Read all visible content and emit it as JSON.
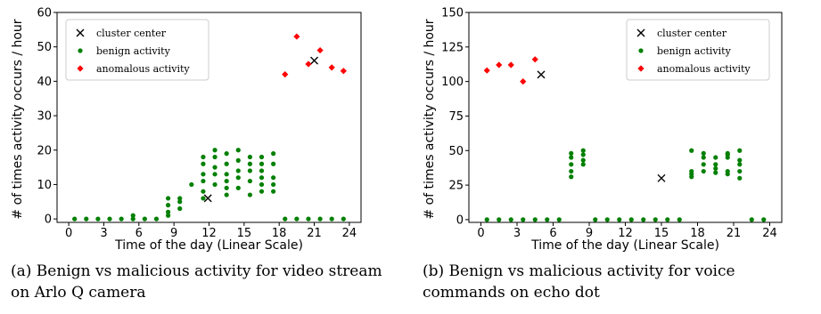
{
  "captions": [
    "(a) Benign vs malicious activity for video stream on Arlo Q camera",
    "(b) Benign vs malicious activity for voice commands on echo dot"
  ],
  "chart_data": [
    {
      "type": "scatter",
      "title": "",
      "xlabel": "Time of the day (Linear Scale)",
      "ylabel": "# of times activity occurs / hour",
      "xlim": [
        -1,
        25
      ],
      "ylim": [
        -1,
        60
      ],
      "xticks": [
        0,
        3,
        6,
        9,
        12,
        15,
        18,
        21,
        24
      ],
      "yticks": [
        0,
        10,
        20,
        30,
        40,
        50,
        60
      ],
      "grid": false,
      "legend_position": "top-left",
      "series": [
        {
          "name": "cluster center",
          "marker": "x",
          "color": "#000000",
          "points": [
            [
              11.9,
              6
            ],
            [
              21,
              46
            ]
          ]
        },
        {
          "name": "benign activity",
          "marker": "circle",
          "color": "#008000",
          "points": [
            [
              0.5,
              0
            ],
            [
              1.5,
              0
            ],
            [
              2.5,
              0
            ],
            [
              3.5,
              0
            ],
            [
              4.5,
              0
            ],
            [
              5.5,
              0
            ],
            [
              5.5,
              1
            ],
            [
              6.5,
              0
            ],
            [
              7.5,
              0
            ],
            [
              8.5,
              1
            ],
            [
              8.5,
              2
            ],
            [
              8.5,
              4
            ],
            [
              8.5,
              6
            ],
            [
              9.5,
              3
            ],
            [
              9.5,
              5
            ],
            [
              9.5,
              6
            ],
            [
              10.5,
              10
            ],
            [
              11.5,
              6
            ],
            [
              11.5,
              8
            ],
            [
              11.5,
              11
            ],
            [
              11.5,
              13
            ],
            [
              11.5,
              16
            ],
            [
              11.5,
              18
            ],
            [
              12.5,
              10
            ],
            [
              12.5,
              13
            ],
            [
              12.5,
              15
            ],
            [
              12.5,
              18
            ],
            [
              12.5,
              20
            ],
            [
              13.5,
              7
            ],
            [
              13.5,
              9
            ],
            [
              13.5,
              11
            ],
            [
              13.5,
              13
            ],
            [
              13.5,
              16
            ],
            [
              13.5,
              19
            ],
            [
              14.5,
              9
            ],
            [
              14.5,
              12
            ],
            [
              14.5,
              14
            ],
            [
              14.5,
              17
            ],
            [
              14.5,
              20
            ],
            [
              15.5,
              7
            ],
            [
              15.5,
              11
            ],
            [
              15.5,
              14
            ],
            [
              15.5,
              16
            ],
            [
              15.5,
              18
            ],
            [
              16.5,
              8
            ],
            [
              16.5,
              10
            ],
            [
              16.5,
              12
            ],
            [
              16.5,
              14
            ],
            [
              16.5,
              16
            ],
            [
              16.5,
              18
            ],
            [
              17.5,
              8
            ],
            [
              17.5,
              10
            ],
            [
              17.5,
              12
            ],
            [
              17.5,
              16
            ],
            [
              17.5,
              19
            ],
            [
              18.5,
              0
            ],
            [
              19.5,
              0
            ],
            [
              20.5,
              0
            ],
            [
              21.5,
              0
            ],
            [
              22.5,
              0
            ],
            [
              23.5,
              0
            ]
          ]
        },
        {
          "name": "anomalous activity",
          "marker": "diamond",
          "color": "#ff0000",
          "points": [
            [
              18.5,
              42
            ],
            [
              19.5,
              53
            ],
            [
              20.5,
              45
            ],
            [
              21.5,
              49
            ],
            [
              22.5,
              44
            ],
            [
              23.5,
              43
            ]
          ]
        }
      ]
    },
    {
      "type": "scatter",
      "title": "",
      "xlabel": "Time of the day (Linear Scale)",
      "ylabel": "# of times activity occurs / hour",
      "xlim": [
        -1,
        25
      ],
      "ylim": [
        -2,
        150
      ],
      "xticks": [
        0,
        3,
        6,
        9,
        12,
        15,
        18,
        21,
        24
      ],
      "yticks": [
        0,
        25,
        50,
        75,
        100,
        125,
        150
      ],
      "grid": false,
      "legend_position": "top-right",
      "series": [
        {
          "name": "cluster center",
          "marker": "x",
          "color": "#000000",
          "points": [
            [
              5,
              105
            ],
            [
              15,
              30
            ]
          ]
        },
        {
          "name": "benign activity",
          "marker": "circle",
          "color": "#008000",
          "points": [
            [
              0.5,
              0
            ],
            [
              1.5,
              0
            ],
            [
              2.5,
              0
            ],
            [
              3.5,
              0
            ],
            [
              4.5,
              0
            ],
            [
              5.5,
              0
            ],
            [
              6.5,
              0
            ],
            [
              7.5,
              31
            ],
            [
              7.5,
              35
            ],
            [
              7.5,
              40
            ],
            [
              7.5,
              45
            ],
            [
              7.5,
              48
            ],
            [
              8.5,
              40
            ],
            [
              8.5,
              43
            ],
            [
              8.5,
              47
            ],
            [
              8.5,
              50
            ],
            [
              9.5,
              0
            ],
            [
              10.5,
              0
            ],
            [
              11.5,
              0
            ],
            [
              12.5,
              0
            ],
            [
              13.5,
              0
            ],
            [
              14.5,
              0
            ],
            [
              15.5,
              0
            ],
            [
              16.5,
              0
            ],
            [
              17.5,
              31
            ],
            [
              17.5,
              33
            ],
            [
              17.5,
              35
            ],
            [
              17.5,
              50
            ],
            [
              18.5,
              35
            ],
            [
              18.5,
              40
            ],
            [
              18.5,
              45
            ],
            [
              18.5,
              48
            ],
            [
              19.5,
              34
            ],
            [
              19.5,
              37
            ],
            [
              19.5,
              40
            ],
            [
              19.5,
              45
            ],
            [
              20.5,
              33
            ],
            [
              20.5,
              35
            ],
            [
              20.5,
              45
            ],
            [
              20.5,
              47
            ],
            [
              20.5,
              48
            ],
            [
              21.5,
              30
            ],
            [
              21.5,
              35
            ],
            [
              21.5,
              40
            ],
            [
              21.5,
              43
            ],
            [
              21.5,
              50
            ],
            [
              22.5,
              0
            ],
            [
              23.5,
              0
            ]
          ]
        },
        {
          "name": "anomalous activity",
          "marker": "diamond",
          "color": "#ff0000",
          "points": [
            [
              0.5,
              108
            ],
            [
              1.5,
              112
            ],
            [
              2.5,
              112
            ],
            [
              3.5,
              100
            ],
            [
              4.5,
              116
            ]
          ]
        }
      ]
    }
  ]
}
